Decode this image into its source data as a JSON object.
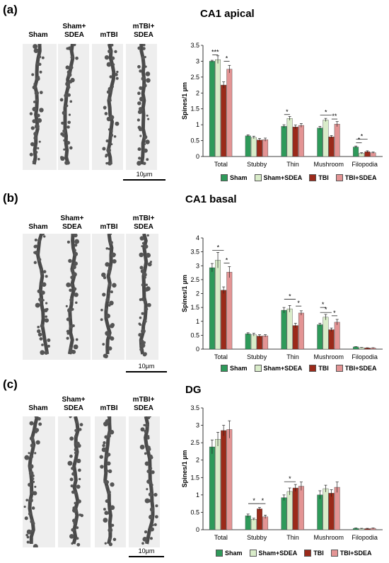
{
  "panels": [
    {
      "letter": "(a)",
      "title": "CA1 apical",
      "image_labels": [
        "Sham",
        "Sham+\nSDEA",
        "mTBI",
        "mTBI+\nSDEA"
      ],
      "scale_label": "10μm",
      "chart_data": {
        "type": "bar",
        "ylabel": "Spines/1 µm",
        "ylim": [
          0,
          3.5
        ],
        "yticks": [
          0,
          0.5,
          1,
          1.5,
          2,
          2.5,
          3,
          3.5
        ],
        "categories": [
          "Total",
          "Stubby",
          "Thin",
          "Mushroom",
          "Filopodia"
        ],
        "series": [
          {
            "name": "Sham",
            "values": [
              3.0,
              0.65,
              0.95,
              0.9,
              0.3
            ],
            "errors": [
              0.03,
              0.03,
              0.05,
              0.05,
              0.03
            ]
          },
          {
            "name": "Sham+SDEA",
            "values": [
              3.05,
              0.6,
              1.2,
              1.15,
              0.1
            ],
            "errors": [
              0.12,
              0.04,
              0.06,
              0.05,
              0.02
            ]
          },
          {
            "name": "TBI",
            "values": [
              2.25,
              0.52,
              0.93,
              0.62,
              0.15
            ],
            "errors": [
              0.1,
              0.05,
              0.06,
              0.04,
              0.03
            ]
          },
          {
            "name": "TBI+SDEA",
            "values": [
              2.75,
              0.53,
              0.98,
              1.02,
              0.12
            ],
            "errors": [
              0.12,
              0.05,
              0.06,
              0.08,
              0.02
            ]
          }
        ],
        "annotations": [
          {
            "category": 0,
            "from": 0,
            "to": 1,
            "y": 3.2,
            "label": "***"
          },
          {
            "category": 0,
            "from": 2,
            "to": 3,
            "y": 3.0,
            "label": "*"
          },
          {
            "category": 2,
            "from": 0,
            "to": 1,
            "y": 1.32,
            "label": "*"
          },
          {
            "category": 3,
            "from": 0,
            "to": 2,
            "y": 1.3,
            "label": "*"
          },
          {
            "category": 3,
            "from": 2,
            "to": 3,
            "y": 1.18,
            "label": "**"
          },
          {
            "category": 4,
            "from": 0,
            "to": 2,
            "y": 0.55,
            "label": "*"
          },
          {
            "category": 4,
            "from": 0,
            "to": 1,
            "y": 0.43,
            "label": "*"
          }
        ],
        "legend": [
          "Sham",
          "Sham+SDEA",
          "TBI",
          "TBI+SDEA"
        ]
      }
    },
    {
      "letter": "(b)",
      "title": "CA1 basal",
      "image_labels": [
        "Sham",
        "Sham+\nSDEA",
        "mTBI",
        "mTBI+\nSDEA"
      ],
      "scale_label": "10μm",
      "chart_data": {
        "type": "bar",
        "ylabel": "Spines/1 µm",
        "ylim": [
          0,
          4
        ],
        "yticks": [
          0,
          0.5,
          1,
          1.5,
          2,
          2.5,
          3,
          3.5,
          4
        ],
        "categories": [
          "Total",
          "Stubby",
          "Thin",
          "Mushroom",
          "Filopodia"
        ],
        "series": [
          {
            "name": "Sham",
            "values": [
              2.93,
              0.55,
              1.4,
              0.88,
              0.08
            ],
            "errors": [
              0.15,
              0.04,
              0.1,
              0.05,
              0.01
            ]
          },
          {
            "name": "Sham+SDEA",
            "values": [
              3.2,
              0.52,
              1.45,
              1.15,
              0.05
            ],
            "errors": [
              0.28,
              0.05,
              0.12,
              0.1,
              0.01
            ]
          },
          {
            "name": "TBI",
            "values": [
              2.12,
              0.47,
              0.85,
              0.7,
              0.04
            ],
            "errors": [
              0.12,
              0.05,
              0.08,
              0.06,
              0.01
            ]
          },
          {
            "name": "TBI+SDEA",
            "values": [
              2.77,
              0.48,
              1.3,
              0.97,
              0.04
            ],
            "errors": [
              0.2,
              0.04,
              0.08,
              0.1,
              0.01
            ]
          }
        ],
        "annotations": [
          {
            "category": 0,
            "from": 0,
            "to": 2,
            "y": 3.55,
            "label": "*"
          },
          {
            "category": 0,
            "from": 2,
            "to": 3,
            "y": 3.1,
            "label": "*"
          },
          {
            "category": 2,
            "from": 0,
            "to": 2,
            "y": 1.8,
            "label": "*"
          },
          {
            "category": 2,
            "from": 2,
            "to": 3,
            "y": 1.55,
            "label": "*"
          },
          {
            "category": 3,
            "from": 0,
            "to": 1,
            "y": 1.5,
            "label": "*"
          },
          {
            "category": 3,
            "from": 0,
            "to": 2,
            "y": 1.32,
            "label": "*"
          },
          {
            "category": 3,
            "from": 2,
            "to": 3,
            "y": 1.2,
            "label": "*"
          }
        ],
        "legend": [
          "Sham",
          "Sham+SDEA",
          "TBI",
          "TBI+SDEA"
        ]
      }
    },
    {
      "letter": "(c)",
      "title": "DG",
      "image_labels": [
        "Sham",
        "Sham+\nSDEA",
        "mTBI",
        "mTBI+\nSDEA"
      ],
      "scale_label": "10μm",
      "chart_data": {
        "type": "bar",
        "ylabel": "Spines/1 µm",
        "ylim": [
          0,
          3.5
        ],
        "yticks": [
          0,
          0.5,
          1,
          1.5,
          2,
          2.5,
          3,
          3.5
        ],
        "categories": [
          "Total",
          "Stubby",
          "Thin",
          "Mushroom",
          "Filopodia"
        ],
        "series": [
          {
            "name": "Sham",
            "values": [
              2.38,
              0.4,
              0.92,
              1.0,
              0.04
            ],
            "errors": [
              0.2,
              0.05,
              0.08,
              0.12,
              0.01
            ]
          },
          {
            "name": "Sham+SDEA",
            "values": [
              2.6,
              0.3,
              1.1,
              1.18,
              0.03
            ],
            "errors": [
              0.2,
              0.03,
              0.1,
              0.1,
              0.01
            ]
          },
          {
            "name": "TBI",
            "values": [
              2.85,
              0.6,
              1.2,
              1.05,
              0.03
            ],
            "errors": [
              0.15,
              0.04,
              0.1,
              0.1,
              0.01
            ]
          },
          {
            "name": "TBI+SDEA",
            "values": [
              2.88,
              0.37,
              1.25,
              1.22,
              0.04
            ],
            "errors": [
              0.25,
              0.05,
              0.12,
              0.15,
              0.01
            ]
          }
        ],
        "annotations": [
          {
            "category": 1,
            "from": 0,
            "to": 2,
            "y": 0.75,
            "label": "*"
          },
          {
            "category": 1,
            "from": 2,
            "to": 3,
            "y": 0.75,
            "label": "*"
          },
          {
            "category": 2,
            "from": 0,
            "to": 2,
            "y": 1.38,
            "label": "*"
          }
        ],
        "legend": [
          "Sham",
          "Sham+SDEA",
          "TBI",
          "TBI+SDEA"
        ]
      }
    }
  ],
  "series_colors": [
    "#2e9a5a",
    "#d9ecc9",
    "#9b2a1a",
    "#e39494"
  ]
}
